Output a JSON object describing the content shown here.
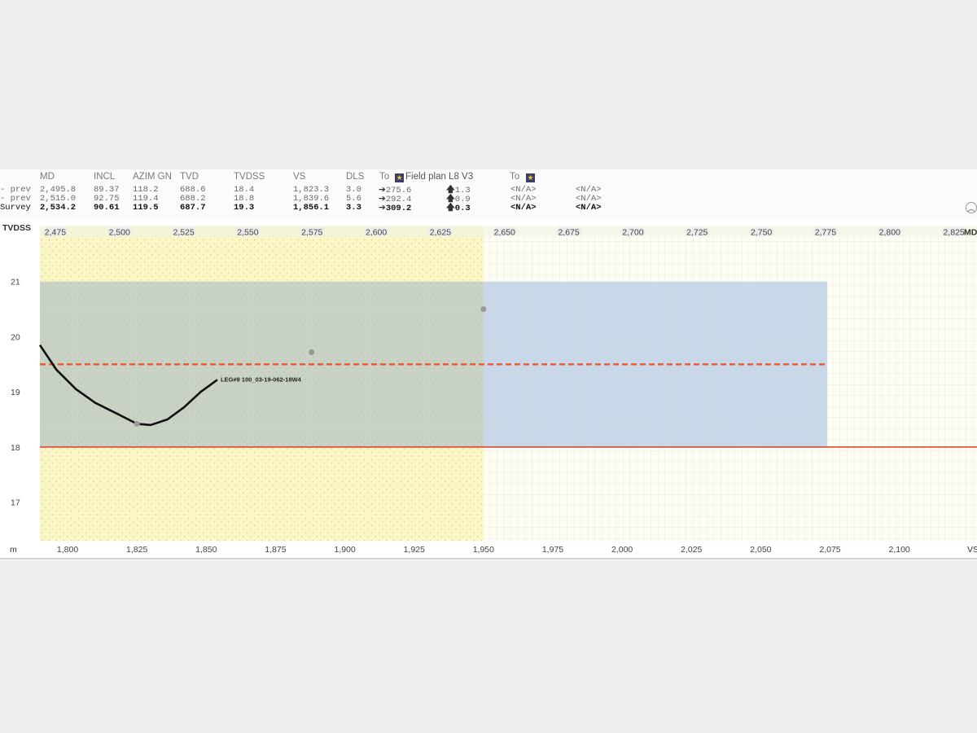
{
  "survey_table": {
    "headers": {
      "md": "MD",
      "incl": "INCL",
      "azim": "AZIM GN",
      "tvd": "TVD",
      "tvdss": "TVDSS",
      "vs": "VS",
      "dls": "DLS",
      "to1": "To",
      "target1": "Field plan L8 V3",
      "to2": "To"
    },
    "rows": [
      {
        "label": "- prev",
        "md": "2,495.8",
        "incl": "89.37",
        "azim": "118.2",
        "tvd": "688.6",
        "tvdss": "18.4",
        "vs": "1,823.3",
        "dls": "3.0",
        "dist": "275.6",
        "vert": "1.3",
        "na1": "<N/A>",
        "na2": "<N/A>"
      },
      {
        "label": "- prev",
        "md": "2,515.0",
        "incl": "92.75",
        "azim": "119.4",
        "tvd": "688.2",
        "tvdss": "18.8",
        "vs": "1,839.6",
        "dls": "5.6",
        "dist": "292.4",
        "vert": "0.9",
        "na1": "<N/A>",
        "na2": "<N/A>"
      },
      {
        "label": "Survey",
        "md": "2,534.2",
        "incl": "90.61",
        "azim": "119.5",
        "tvd": "687.7",
        "tvdss": "19.3",
        "vs": "1,856.1",
        "dls": "3.3",
        "dist": "309.2",
        "vert": "0.3",
        "na1": "<N/A>",
        "na2": "<N/A>"
      }
    ],
    "icons": {
      "target": "star-icon",
      "collapse": "chevron-up-icon",
      "right_arrow": "arrow-right-icon",
      "up_arrow": "arrow-up-icon"
    }
  },
  "chart_data": {
    "type": "line",
    "y_axis_label": "TVDSS",
    "x_axis_label": "m",
    "top_axis_label": "MD",
    "right_axis_label": "VS",
    "ylim": [
      16.3,
      22
    ],
    "x_vs_lim": [
      1790,
      2128
    ],
    "md_top_ticks": [
      "2,475",
      "2,500",
      "2,525",
      "2,550",
      "2,575",
      "2,600",
      "2,625",
      "2,650",
      "2,675",
      "2,700",
      "2,725",
      "2,750",
      "2,775",
      "2,800",
      "2,825"
    ],
    "md_top_tick_values": [
      2475,
      2500,
      2525,
      2550,
      2575,
      2600,
      2625,
      2650,
      2675,
      2700,
      2725,
      2750,
      2775,
      2800,
      2825
    ],
    "md_lim": [
      2469,
      2834
    ],
    "y_ticks": [
      "17",
      "18",
      "19",
      "20",
      "21"
    ],
    "y_tick_values": [
      17,
      18,
      19,
      20,
      21
    ],
    "x_ticks": [
      "1,800",
      "1,825",
      "1,850",
      "1,875",
      "1,900",
      "1,925",
      "1,950",
      "1,975",
      "2,000",
      "2,025",
      "2,050",
      "2,075",
      "2,100"
    ],
    "x_tick_values": [
      1800,
      1825,
      1850,
      1875,
      1900,
      1925,
      1950,
      1975,
      2000,
      2025,
      2050,
      2075,
      2100
    ],
    "zones": {
      "formation_vs_end": 1950,
      "target_window": {
        "top": 21,
        "bottom": 18,
        "vs_end": 2074
      }
    },
    "lines": {
      "target_center": 19.5,
      "target_bottom": 18.0
    },
    "well_path": {
      "name": "LEG#9 100_03-19-062-18W4",
      "x": [
        1790,
        1796,
        1803,
        1810,
        1818,
        1825,
        1830,
        1836,
        1842,
        1848,
        1854
      ],
      "y": [
        19.85,
        19.4,
        19.05,
        18.8,
        18.6,
        18.42,
        18.4,
        18.5,
        18.72,
        19.0,
        19.22
      ]
    },
    "survey_points": [
      {
        "x": 1825,
        "y": 18.42
      },
      {
        "x": 1888,
        "y": 19.72
      },
      {
        "x": 1950,
        "y": 20.5
      }
    ],
    "colors": {
      "formation": "#fbf6c4",
      "target_window": "#c8d8e8",
      "overlap": "#c9d3c5",
      "target_center": "#ee5533",
      "target_bottom": "#e03a20",
      "well_path": "#111111",
      "survey_point": "#9a9a9a",
      "background": "#fdfdf4",
      "grid": "#dcdcd0"
    }
  }
}
